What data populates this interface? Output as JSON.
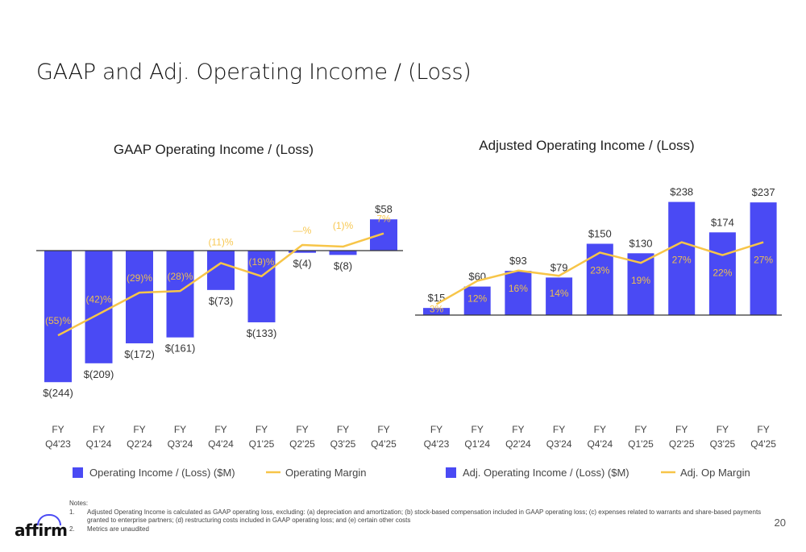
{
  "page": {
    "title": "GAAP and Adj. Operating Income / (Loss)",
    "page_number": "20",
    "logo_text": "affirm"
  },
  "colors": {
    "bar": "#4a4af4",
    "line": "#f7c548",
    "axis": "#333333",
    "margin_label_on_bar": "#f7c548"
  },
  "notes": {
    "header": "Notes:",
    "items": [
      {
        "num": "1.",
        "text": "Adjusted Operating Income is calculated as GAAP operating loss, excluding: (a) depreciation and amortization; (b) stock-based compensation included in GAAP operating loss; (c) expenses related to warrants and share-based payments granted to enterprise partners; (d) restructuring costs included in GAAP operating loss;  and (e) certain other costs"
      },
      {
        "num": "2.",
        "text": "Metrics are unaudited"
      }
    ]
  },
  "chart_data": [
    {
      "type": "bar",
      "title": "GAAP Operating Income / (Loss)",
      "categories": [
        "FY Q4'23",
        "FY Q1'24",
        "FY Q2'24",
        "FY Q3'24",
        "FY Q4'24",
        "FY Q1'25",
        "FY Q2'25",
        "FY Q3'25",
        "FY Q4'25"
      ],
      "series": [
        {
          "name": "Operating Income / (Loss) ($M)",
          "kind": "bar",
          "values": [
            -244,
            -209,
            -172,
            -161,
            -73,
            -133,
            -4,
            -8,
            58
          ],
          "labels": [
            "$(244)",
            "$(209)",
            "$(172)",
            "$(161)",
            "$(73)",
            "$(133)",
            "$(4)",
            "$(8)",
            "$58"
          ]
        },
        {
          "name": "Operating Margin",
          "kind": "line",
          "unit": "%",
          "values": [
            -55,
            -42,
            -29,
            -28,
            -11,
            -19,
            0,
            -1,
            7
          ],
          "labels": [
            "(55)%",
            "(42)%",
            "(29)%",
            "(28)%",
            "(11)%",
            "(19)%",
            "—%",
            "(1)%",
            "7%"
          ]
        }
      ]
    },
    {
      "type": "bar",
      "title": "Adjusted Operating Income / (Loss)",
      "categories": [
        "FY Q4'23",
        "FY Q1'24",
        "FY Q2'24",
        "FY Q3'24",
        "FY Q4'24",
        "FY Q1'25",
        "FY Q2'25",
        "FY Q3'25",
        "FY Q4'25"
      ],
      "series": [
        {
          "name": "Adj. Operating Income / (Loss) ($M)",
          "kind": "bar",
          "values": [
            15,
            60,
            93,
            79,
            150,
            130,
            238,
            174,
            237
          ],
          "labels": [
            "$15",
            "$60",
            "$93",
            "$79",
            "$150",
            "$130",
            "$238",
            "$174",
            "$237"
          ]
        },
        {
          "name": "Adj. Op Margin",
          "kind": "line",
          "unit": "%",
          "values": [
            3,
            12,
            16,
            14,
            23,
            19,
            27,
            22,
            27
          ],
          "labels": [
            "3%",
            "12%",
            "16%",
            "14%",
            "23%",
            "19%",
            "27%",
            "22%",
            "27%"
          ]
        }
      ]
    }
  ]
}
